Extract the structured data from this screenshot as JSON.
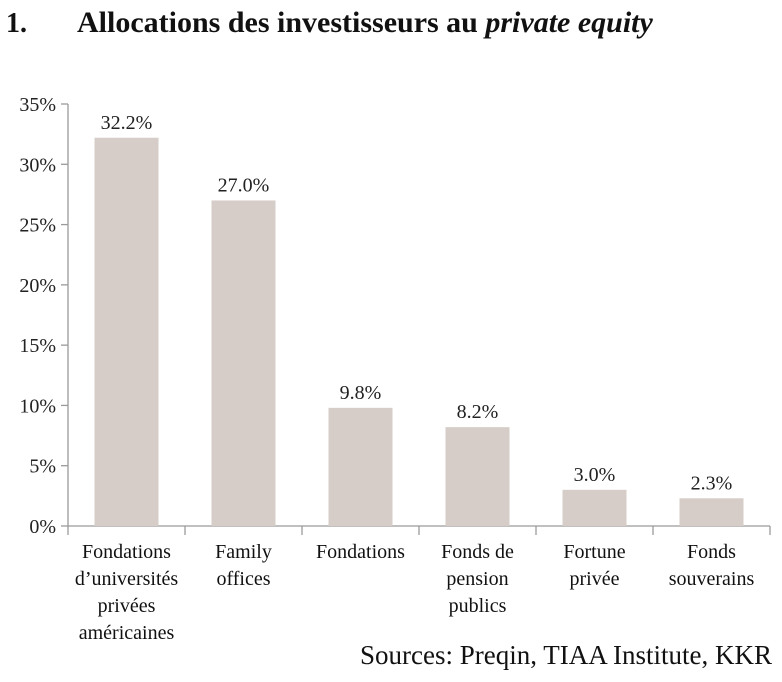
{
  "header": {
    "number": "1.",
    "title_main": "Allocations des investisseurs au",
    "title_italic": "private equity"
  },
  "chart_data": {
    "type": "bar",
    "categories": [
      [
        "Fondations",
        "d’universités",
        "privées",
        "américaines"
      ],
      [
        "Family",
        "offices"
      ],
      [
        "Fondations"
      ],
      [
        "Fonds de",
        "pension",
        "publics"
      ],
      [
        "Fortune",
        "privée"
      ],
      [
        "Fonds",
        "souverains"
      ]
    ],
    "values": [
      32.2,
      27.0,
      9.8,
      8.2,
      3.0,
      2.3
    ],
    "data_labels": [
      "32.2%",
      "27.0%",
      "9.8%",
      "8.2%",
      "3.0%",
      "2.3%"
    ],
    "yticks": [
      0,
      5,
      10,
      15,
      20,
      25,
      30,
      35
    ],
    "ytick_labels": [
      "0%",
      "5%",
      "10%",
      "15%",
      "20%",
      "25%",
      "30%",
      "35%"
    ],
    "ylim": [
      0,
      35
    ],
    "grid": false,
    "bar_color": "#d6cdc8",
    "axis_color": "#9a9a9a"
  },
  "footer": {
    "source": "Sources: Preqin, TIAA Institute, KKR"
  }
}
